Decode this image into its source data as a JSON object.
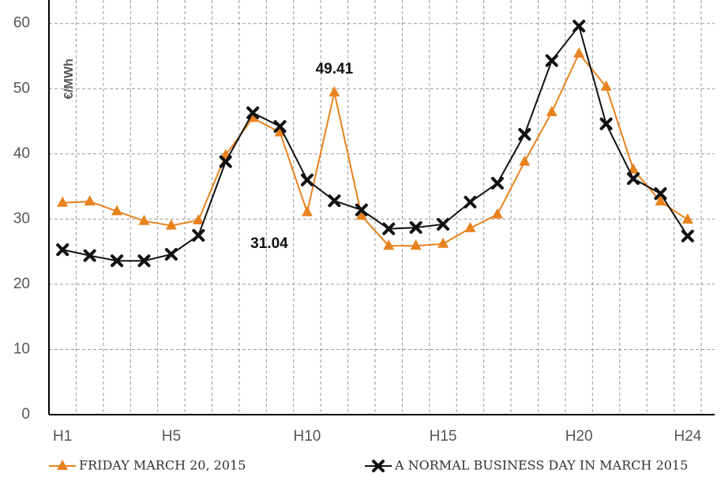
{
  "chart_data": {
    "type": "line",
    "y_axis_label": "€/MWh",
    "categories": [
      "H1",
      null,
      null,
      null,
      "H5",
      null,
      null,
      null,
      null,
      "H10",
      null,
      null,
      null,
      null,
      "H15",
      null,
      null,
      null,
      null,
      "H20",
      null,
      null,
      null,
      "H24"
    ],
    "series": [
      {
        "name": "FRIDAY MARCH 20, 2015",
        "color": "#e8821e",
        "marker": "triangle",
        "values": [
          32.5,
          32.7,
          31.2,
          29.7,
          29.0,
          29.8,
          39.8,
          45.5,
          43.3,
          31.04,
          49.41,
          30.5,
          25.9,
          25.9,
          26.2,
          28.6,
          30.7,
          38.8,
          46.4,
          55.4,
          50.3,
          37.6,
          32.7,
          29.9
        ]
      },
      {
        "name": "A NORMAL BUSINESS DAY IN MARCH 2015",
        "color": "#111111",
        "marker": "x",
        "values": [
          25.3,
          24.4,
          23.6,
          23.6,
          24.6,
          27.5,
          38.8,
          46.3,
          44.2,
          36.0,
          32.8,
          31.4,
          28.5,
          28.7,
          29.2,
          32.6,
          35.5,
          43.0,
          54.3,
          59.6,
          44.6,
          36.2,
          33.9,
          27.4
        ]
      }
    ],
    "annotations": [
      {
        "text": "49.41",
        "series": 0,
        "index": 10
      },
      {
        "text": "31.04",
        "series": 0,
        "index": 9
      }
    ],
    "ylim": [
      0,
      63.6
    ],
    "yticks": [
      0,
      10,
      20,
      30,
      40,
      50,
      60
    ],
    "grid": true,
    "legend": "bottom"
  }
}
